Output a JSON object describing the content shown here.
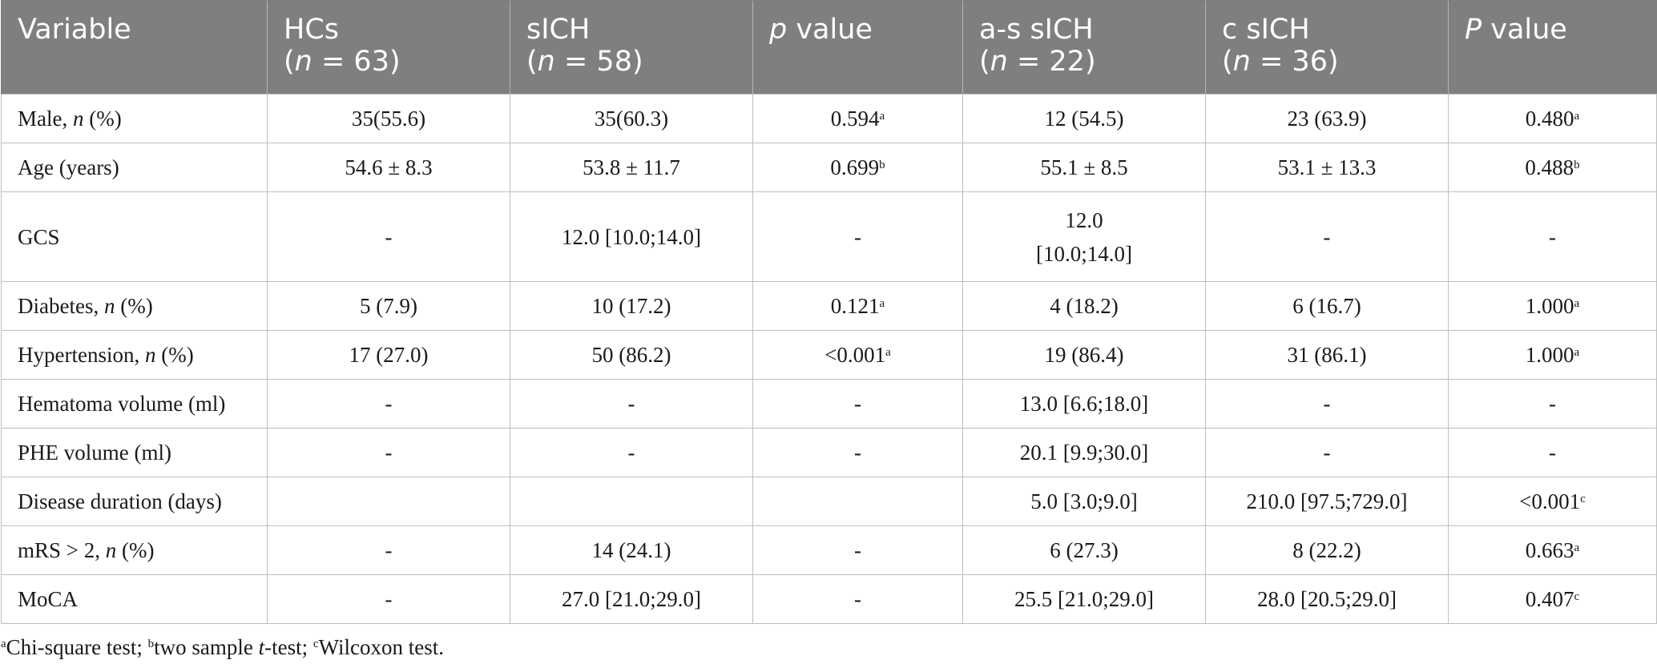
{
  "header": [
    {
      "line1": "Variable",
      "line2": "",
      "italic_prefix": ""
    },
    {
      "line1": "HCs",
      "line2": "(n = 63)"
    },
    {
      "line1": "sICH",
      "line2": "(n = 58)"
    },
    {
      "line1": "p value",
      "line2": ""
    },
    {
      "line1": "a-s sICH",
      "line2": "(n = 22)"
    },
    {
      "line1": "c sICH",
      "line2": "(n = 36)"
    },
    {
      "line1": "P value",
      "line2": ""
    }
  ],
  "rows": [
    {
      "var_pre": "Male, ",
      "var_it": "n",
      "var_post": " (%)",
      "cells": [
        "35(55.6)",
        "35(60.3)",
        "0.594",
        "12 (54.5)",
        "23 (63.9)",
        "0.480"
      ],
      "sup_p1": "a",
      "sup_p2": "a"
    },
    {
      "var_pre": "Age (years)",
      "var_it": "",
      "var_post": "",
      "cells": [
        "54.6 ± 8.3",
        "53.8 ± 11.7",
        "0.699",
        "55.1 ± 8.5",
        "53.1 ± 13.3",
        "0.488"
      ],
      "sup_p1": "b",
      "sup_p2": "b"
    },
    {
      "var_pre": "GCS",
      "var_it": "",
      "var_post": "",
      "cells": [
        "-",
        "12.0 [10.0;14.0]",
        "-",
        "12.0",
        "-",
        "-"
      ],
      "cell4_line2": "[10.0;14.0]",
      "sup_p1": "",
      "sup_p2": ""
    },
    {
      "var_pre": "Diabetes, ",
      "var_it": "n",
      "var_post": " (%)",
      "cells": [
        "5 (7.9)",
        "10 (17.2)",
        "0.121",
        "4 (18.2)",
        "6 (16.7)",
        "1.000"
      ],
      "sup_p1": "a",
      "sup_p2": "a"
    },
    {
      "var_pre": "Hypertension, ",
      "var_it": "n",
      "var_post": " (%)",
      "cells": [
        "17 (27.0)",
        "50 (86.2)",
        "<0.001",
        "19 (86.4)",
        "31 (86.1)",
        "1.000"
      ],
      "sup_p1": "a",
      "sup_p2": "a"
    },
    {
      "var_pre": "Hematoma volume (ml)",
      "var_it": "",
      "var_post": "",
      "cells": [
        "-",
        "-",
        "-",
        "13.0 [6.6;18.0]",
        "-",
        "-"
      ],
      "sup_p1": "",
      "sup_p2": ""
    },
    {
      "var_pre": "PHE volume (ml)",
      "var_it": "",
      "var_post": "",
      "cells": [
        "-",
        "-",
        "-",
        "20.1 [9.9;30.0]",
        "-",
        "-"
      ],
      "sup_p1": "",
      "sup_p2": ""
    },
    {
      "var_pre": "Disease duration (days)",
      "var_it": "",
      "var_post": "",
      "cells": [
        "",
        "",
        "",
        "5.0 [3.0;9.0]",
        "210.0 [97.5;729.0]",
        "<0.001"
      ],
      "sup_p1": "",
      "sup_p2": "c"
    },
    {
      "var_pre": "mRS > 2, ",
      "var_it": "n",
      "var_post": " (%)",
      "cells": [
        "-",
        "14 (24.1)",
        "-",
        "6 (27.3)",
        "8 (22.2)",
        "0.663"
      ],
      "sup_p1": "",
      "sup_p2": "a"
    },
    {
      "var_pre": "MoCA",
      "var_it": "",
      "var_post": "",
      "cells": [
        "-",
        "27.0 [21.0;29.0]",
        "-",
        "25.5 [21.0;29.0]",
        "28.0 [20.5;29.0]",
        "0.407"
      ],
      "sup_p1": "",
      "sup_p2": "c"
    }
  ],
  "footnote": {
    "a_mark": "a",
    "a_text": "Chi-square test; ",
    "b_mark": "b",
    "b_text_pre": "two sample ",
    "b_text_it": "t",
    "b_text_post": "-test; ",
    "c_mark": "c",
    "c_text": "Wilcoxon test."
  }
}
